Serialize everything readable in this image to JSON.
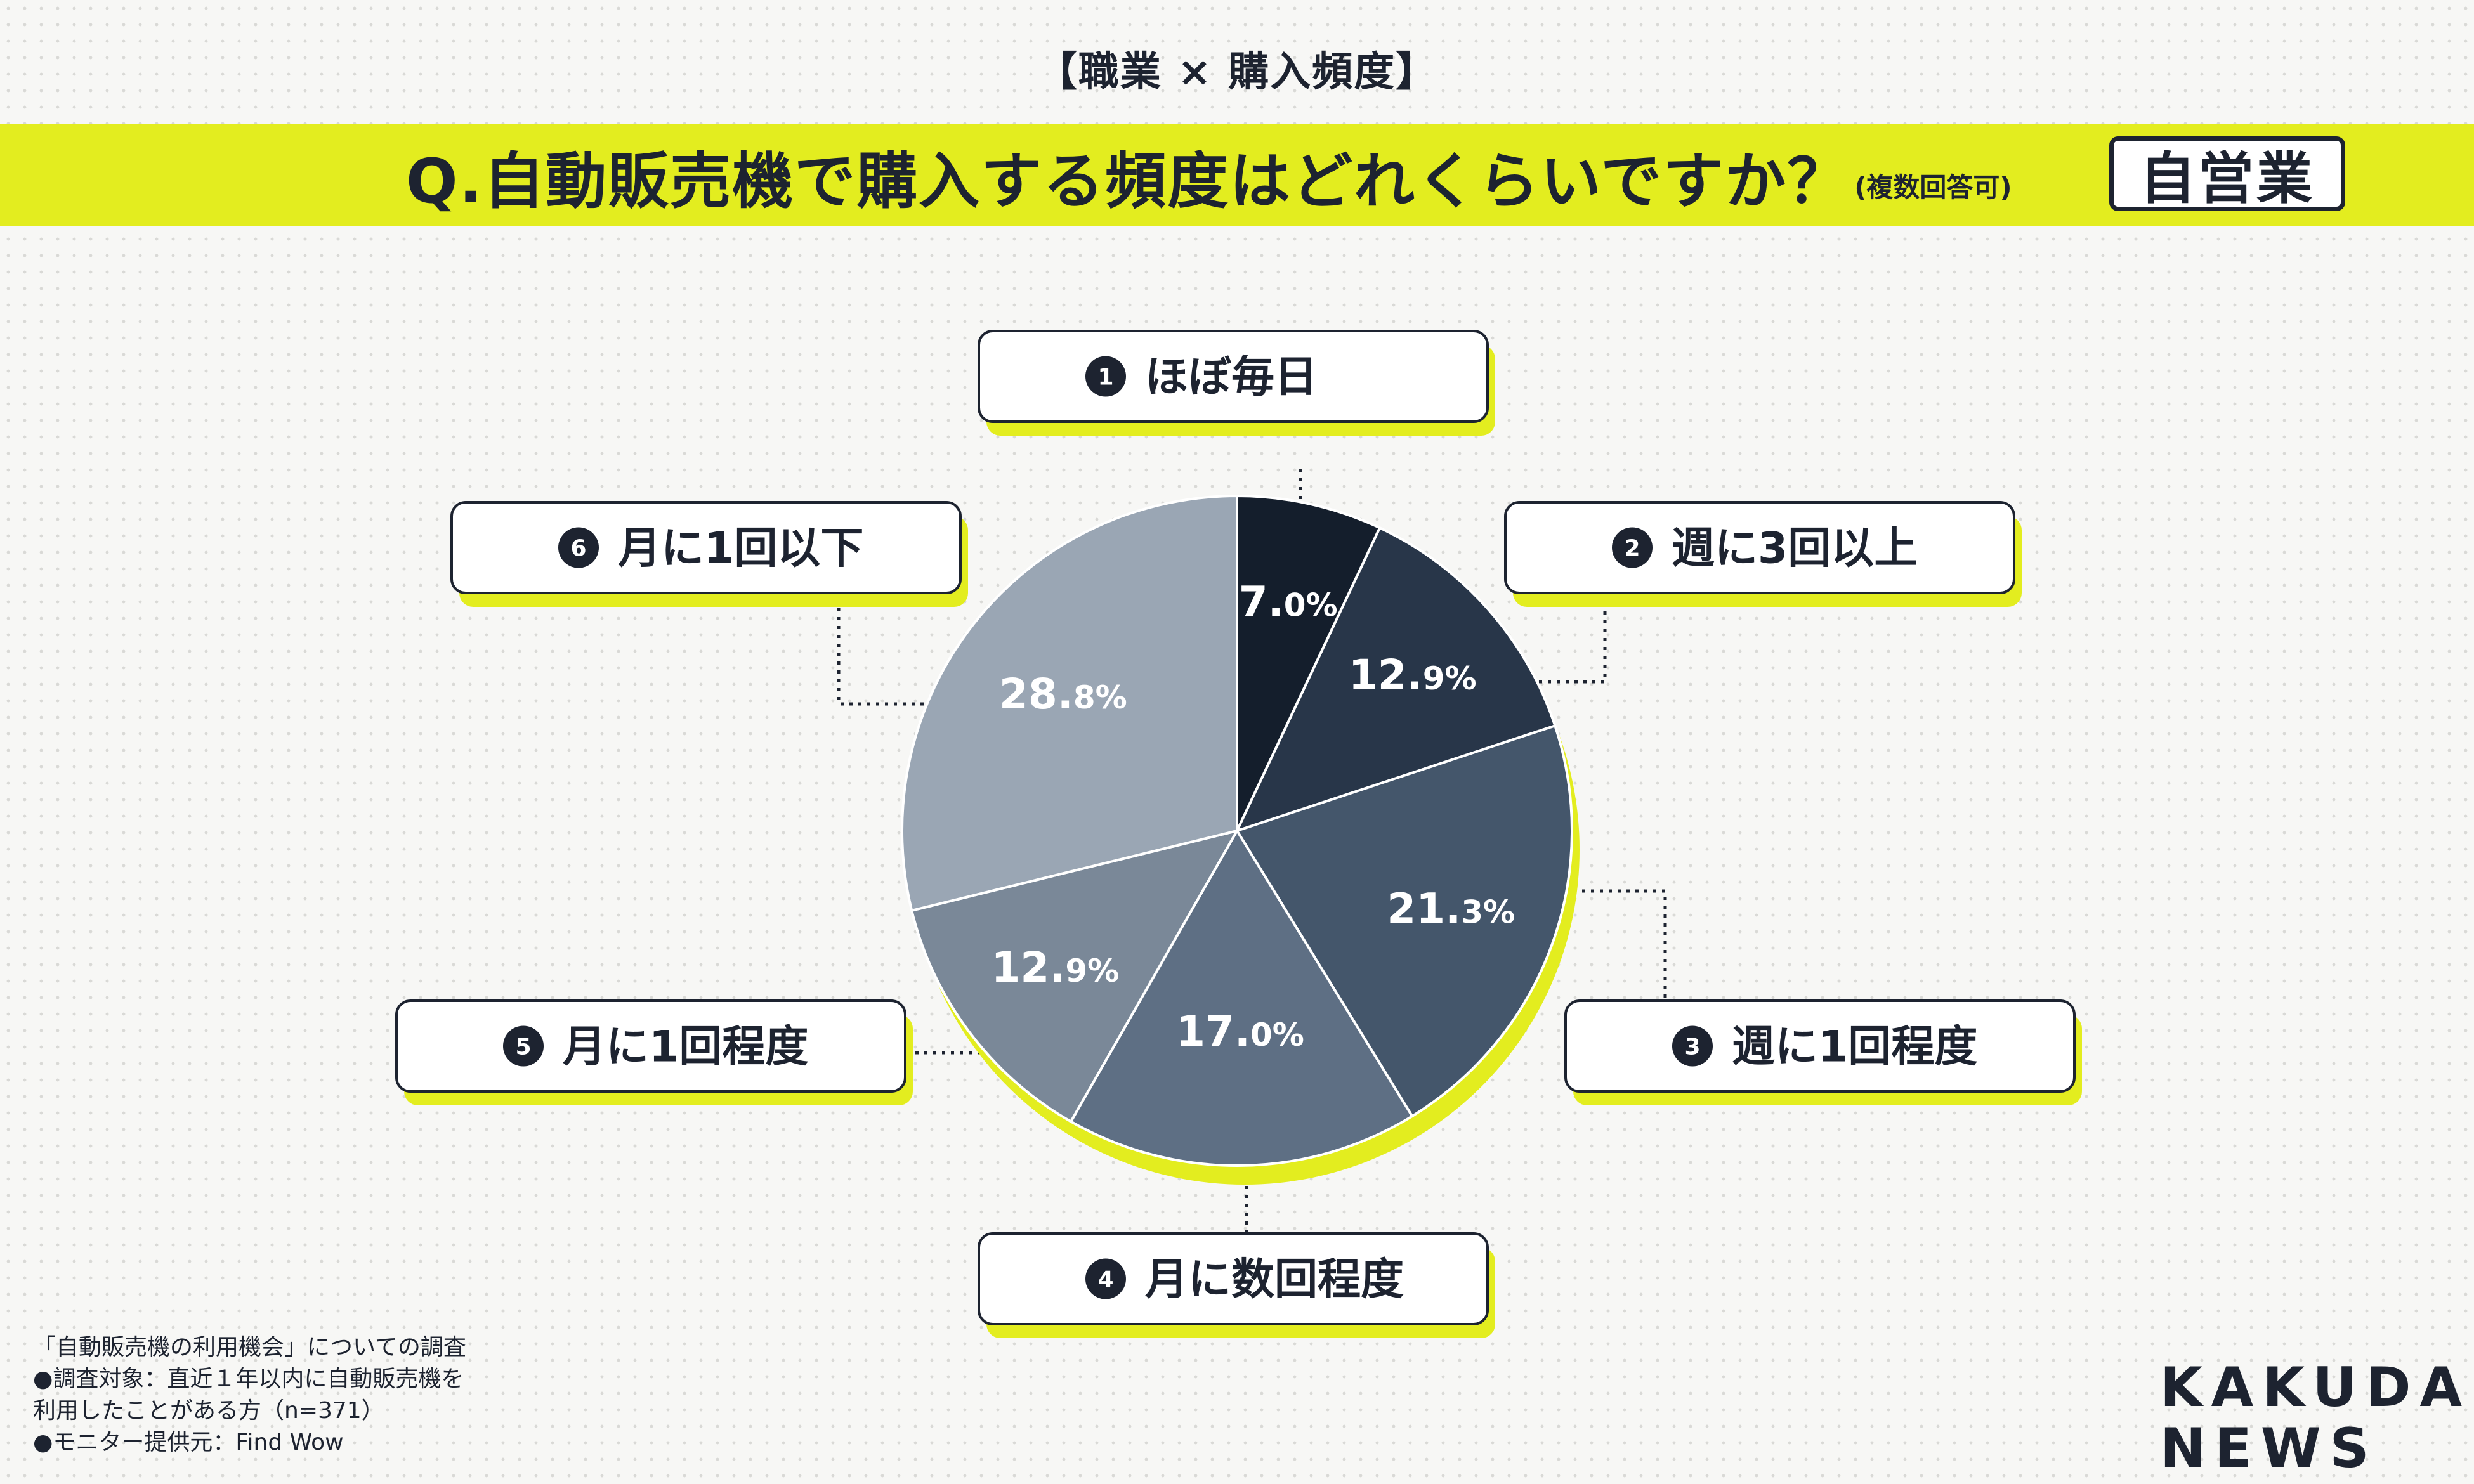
{
  "header": {
    "topic": "【職業 × 購入頻度】",
    "question": "Q.自動販売機で購入する頻度はどれくらいですか？",
    "question_note": "(複数回答可)",
    "occupation_badge": "自営業"
  },
  "colors": {
    "accent_band": "#e3ed1f",
    "dark_text": "#1d2330",
    "slices": [
      "#141e2c",
      "#283649",
      "#44566b",
      "#5e6f84",
      "#7a8898",
      "#9aa6b4"
    ]
  },
  "chart_data": {
    "type": "pie",
    "title": "",
    "unit": "%",
    "start_angle_deg": 0,
    "direction": "clockwise",
    "slices": [
      {
        "num": "1",
        "label": "ほぼ毎日",
        "value": 7.0,
        "int": "7.",
        "dec": "0%"
      },
      {
        "num": "2",
        "label": "週に3回以上",
        "value": 12.9,
        "int": "12.",
        "dec": "9%"
      },
      {
        "num": "3",
        "label": "週に1回程度",
        "value": 21.3,
        "int": "21.",
        "dec": "3%"
      },
      {
        "num": "4",
        "label": "月に数回程度",
        "value": 17.0,
        "int": "17.",
        "dec": "0%"
      },
      {
        "num": "5",
        "label": "月に1回程度",
        "value": 12.9,
        "int": "12.",
        "dec": "9%"
      },
      {
        "num": "6",
        "label": "月に1回以下",
        "value": 28.8,
        "int": "28.",
        "dec": "8%"
      }
    ]
  },
  "notes": [
    "「自動販売機の利用機会」についての調査",
    "●調査対象：直近１年以内に自動販売機を",
    "利用したことがある方（n=371）",
    "●モニター提供元：Find Wow"
  ],
  "brand": {
    "line1": "KAKUDAI",
    "line2": "NEWS"
  }
}
